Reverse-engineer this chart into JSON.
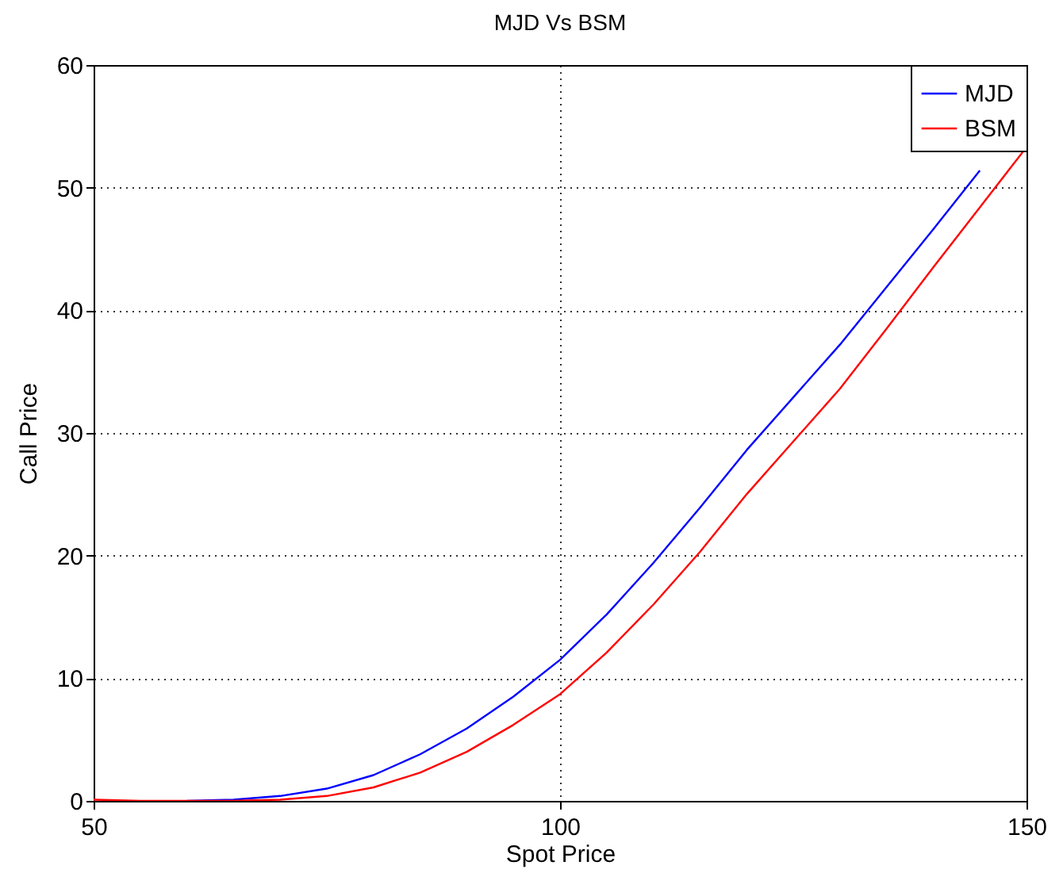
{
  "chart_data": {
    "type": "line",
    "title": "MJD Vs BSM",
    "xlabel": "Spot Price",
    "ylabel": "Call Price",
    "x": [
      50,
      55,
      60,
      65,
      70,
      75,
      80,
      85,
      90,
      95,
      100,
      105,
      110,
      115,
      120,
      125,
      130,
      135,
      140,
      145,
      150
    ],
    "series": [
      {
        "name": "MJD",
        "color": "#0000ff",
        "values": [
          null,
          null,
          0,
          0.1,
          0.4,
          1.0,
          2.1,
          3.8,
          5.9,
          8.5,
          11.5,
          15.2,
          19.4,
          23.9,
          28.6,
          32.9,
          37.2,
          41.9,
          46.6,
          51.4,
          null
        ]
      },
      {
        "name": "BSM",
        "color": "#ff0000",
        "values": [
          0.1,
          0,
          0,
          0,
          0.1,
          0.4,
          1.1,
          2.3,
          4.0,
          6.2,
          8.7,
          12.1,
          16.0,
          20.3,
          25.0,
          29.3,
          33.6,
          38.5,
          43.5,
          48.4,
          53.3
        ]
      }
    ],
    "xlim": [
      50,
      150
    ],
    "xticks": [
      50,
      100,
      150
    ],
    "ylim": [
      0,
      60
    ],
    "yticks": [
      0,
      10,
      20,
      30,
      40,
      50,
      60
    ],
    "grid": true,
    "legend": "top right",
    "line_style": "solid",
    "marker": "none"
  }
}
